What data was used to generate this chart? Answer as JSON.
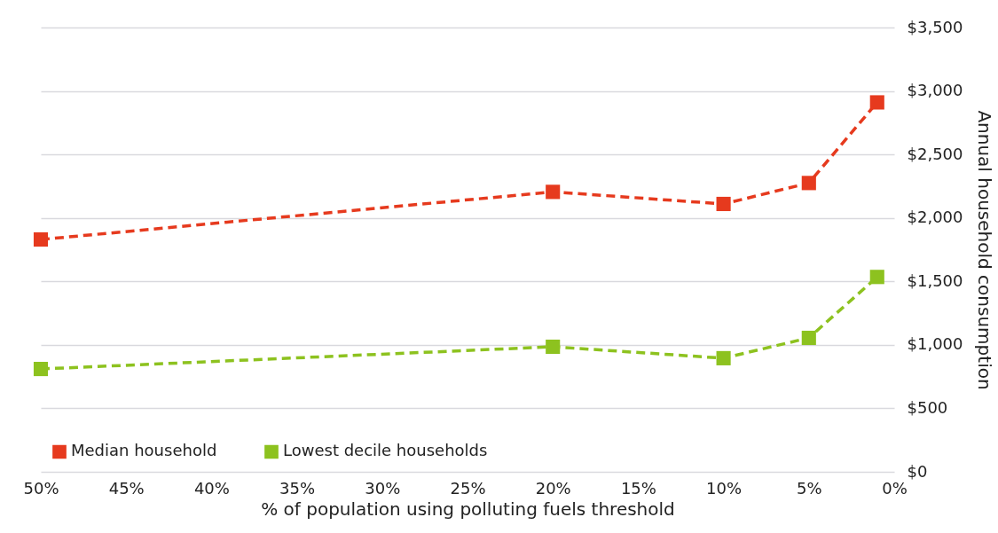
{
  "chart_data": {
    "type": "line",
    "xlabel": "% of population using polluting fuels threshold",
    "ylabel": "Annual household consumption",
    "x": [
      50,
      20,
      10,
      5,
      1
    ],
    "series": [
      {
        "name": "Median household",
        "color": "#e63a1e",
        "values": [
          1830,
          2205,
          2110,
          2275,
          2910
        ]
      },
      {
        "name": "Lowest decile households",
        "color": "#8dc21f",
        "values": [
          810,
          985,
          895,
          1055,
          1535
        ]
      }
    ],
    "xlim": [
      50,
      0
    ],
    "xticks": [
      {
        "value": 50,
        "label": "50%"
      },
      {
        "value": 45,
        "label": "45%"
      },
      {
        "value": 40,
        "label": "40%"
      },
      {
        "value": 35,
        "label": "35%"
      },
      {
        "value": 30,
        "label": "30%"
      },
      {
        "value": 25,
        "label": "25%"
      },
      {
        "value": 20,
        "label": "20%"
      },
      {
        "value": 15,
        "label": "15%"
      },
      {
        "value": 10,
        "label": "10%"
      },
      {
        "value": 5,
        "label": "5%"
      },
      {
        "value": 0,
        "label": "0%"
      }
    ],
    "ylim": [
      0,
      3500
    ],
    "yticks": [
      {
        "value": 0,
        "label": "$0"
      },
      {
        "value": 500,
        "label": "$500"
      },
      {
        "value": 1000,
        "label": "$1,000"
      },
      {
        "value": 1500,
        "label": "$1,500"
      },
      {
        "value": 2000,
        "label": "$2,000"
      },
      {
        "value": 2500,
        "label": "$2,500"
      },
      {
        "value": 3000,
        "label": "$3,000"
      },
      {
        "value": 3500,
        "label": "$3,500"
      }
    ],
    "grid": "y",
    "legend": "bottom left",
    "marker": "square",
    "line_style": "dashed"
  }
}
